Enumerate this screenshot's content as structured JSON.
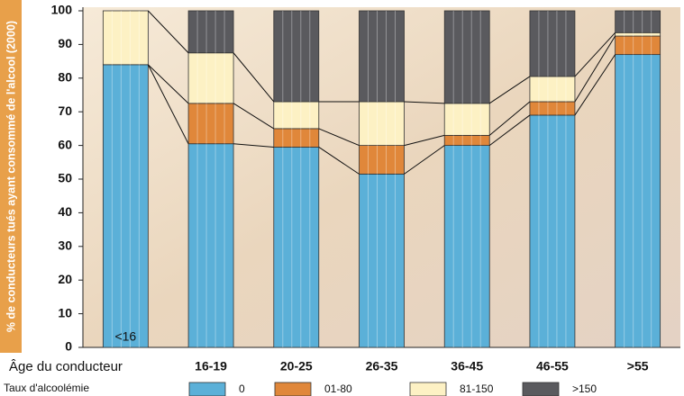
{
  "chart_data": {
    "type": "stacked-bar",
    "y_label": "% de conducteurs tués ayant consommé de l'alcool (2000)",
    "x_label": "Âge du conducteur",
    "legend_title": "Taux d'alcoolémie",
    "categories": [
      "<16",
      "16-19",
      "20-25",
      "26-35",
      "36-45",
      "46-55",
      ">55"
    ],
    "series": [
      {
        "name": "0",
        "color": "#5bb0d8",
        "values": [
          84,
          60.5,
          59.5,
          51.5,
          60,
          69,
          87
        ]
      },
      {
        "name": "01-80",
        "color": "#e0873a",
        "values": [
          0,
          12,
          5.5,
          8.5,
          3,
          4,
          5.5
        ]
      },
      {
        "name": "81-150",
        "color": "#fdf1c4",
        "values": [
          16,
          15,
          8,
          13,
          9.5,
          7.5,
          1
        ]
      },
      {
        "name": ">150",
        "color": "#5a5a5e",
        "values": [
          0,
          12.5,
          27,
          27,
          27.5,
          19.5,
          6.5
        ]
      }
    ],
    "ylim": [
      0,
      100
    ],
    "yticks": [
      0,
      10,
      20,
      30,
      40,
      50,
      60,
      70,
      80,
      90,
      100
    ]
  }
}
